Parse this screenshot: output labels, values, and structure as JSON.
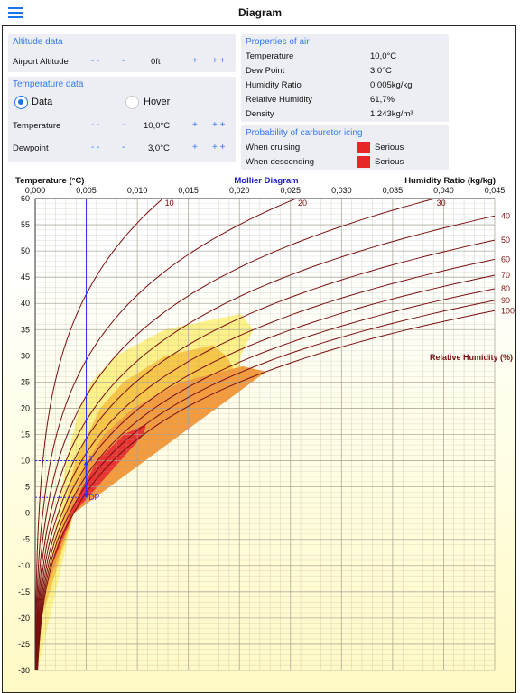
{
  "app": {
    "title": "Diagram"
  },
  "altitude": {
    "header": "Altitude data",
    "label": "Airport Altitude",
    "value": "0ft",
    "dec2": "- -",
    "dec1": "-",
    "inc1": "+",
    "inc2": "+ +"
  },
  "temperature_data": {
    "header": "Temperature data",
    "mode_data": "Data",
    "mode_hover": "Hover",
    "selected_mode": "Data",
    "temp_label": "Temperature",
    "temp_value": "10,0°C",
    "dew_label": "Dewpoint",
    "dew_value": "3,0°C",
    "dec2": "- -",
    "dec1": "-",
    "inc1": "+",
    "inc2": "+ +"
  },
  "properties": {
    "header": "Properties of air",
    "rows": [
      {
        "label": "Temperature",
        "value": "10,0°C"
      },
      {
        "label": "Dew Point",
        "value": "3,0°C"
      },
      {
        "label": "Humidity Ratio",
        "value": "0,005kg/kg"
      },
      {
        "label": "Relative Humidity",
        "value": "61,7%"
      },
      {
        "label": "Density",
        "value": "1,243kg/m³"
      }
    ]
  },
  "icing": {
    "header": "Probability of carburetor icing",
    "rows": [
      {
        "label": "When cruising",
        "value": "Serious",
        "color": "#e8262a"
      },
      {
        "label": "When descending",
        "value": "Serious",
        "color": "#e8262a"
      }
    ]
  },
  "chart_data": {
    "type": "line",
    "title": "Mollier Diagram",
    "xlabel": "Humidity Ratio (kg/kg)",
    "ylabel": "Temperature (°C)",
    "xlim": [
      0,
      0.045
    ],
    "ylim": [
      -30,
      60
    ],
    "x_tick_labels": [
      "0,000",
      "0,005",
      "0,010",
      "0,015",
      "0,020",
      "0,025",
      "0,030",
      "0,035",
      "0,040",
      "0,045"
    ],
    "y_tick_labels": [
      "60",
      "55",
      "50",
      "45",
      "40",
      "35",
      "30",
      "25",
      "20",
      "15",
      "10",
      "5",
      "0",
      "-5",
      "-10",
      "-15",
      "-20",
      "-25",
      "-30"
    ],
    "series_label": "Relative Humidity (%)",
    "rh_curves": [
      10,
      20,
      30,
      40,
      50,
      60,
      70,
      80,
      90,
      100
    ],
    "rh_labels": [
      "10",
      "20",
      "30",
      "40",
      "50",
      "60",
      "70",
      "80",
      "90",
      "100"
    ],
    "current_point": {
      "temperature": 10.0,
      "dew_point": 3.0,
      "humidity_ratio": 0.005,
      "label_t": "T",
      "label_dp": "DP"
    },
    "icing_zones": [
      {
        "name": "light",
        "color": "#fdf18a"
      },
      {
        "name": "moderate",
        "color": "#f9c748"
      },
      {
        "name": "serious-cruise",
        "color": "#f49b3e"
      },
      {
        "name": "serious",
        "color": "#e93332"
      }
    ],
    "colors": {
      "curve": "#7a0f0f",
      "axis_title": "#1a1acc",
      "marker": "#2c2cff",
      "grid": "#a6a292"
    }
  }
}
